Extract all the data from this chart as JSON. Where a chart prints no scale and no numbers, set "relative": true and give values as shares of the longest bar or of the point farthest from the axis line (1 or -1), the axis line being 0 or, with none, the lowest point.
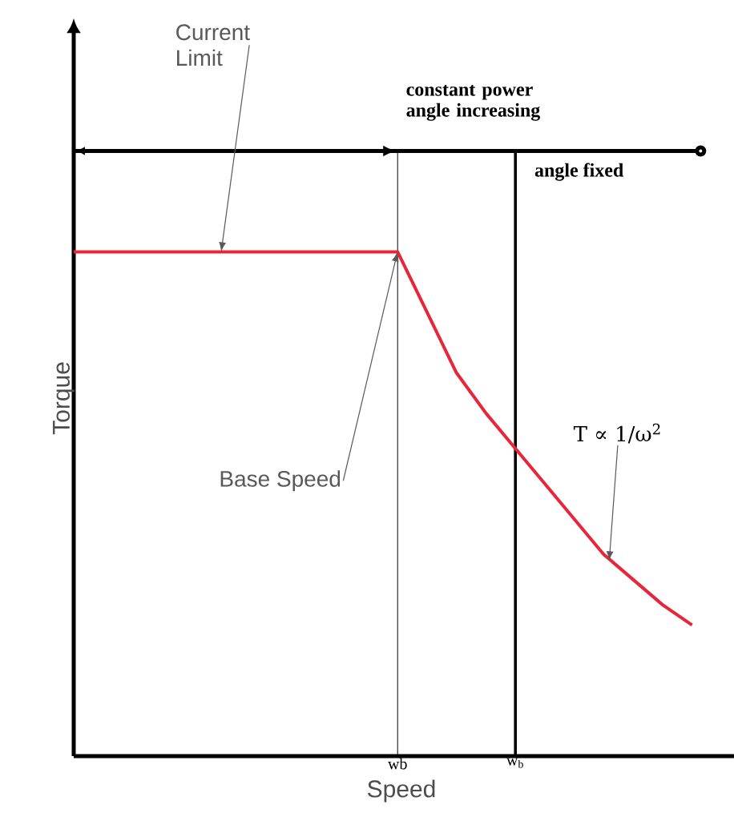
{
  "chart_data": {
    "type": "line",
    "relative": true,
    "xlabel": "Speed",
    "ylabel": "Torque",
    "tick_labels": "x",
    "categories": [
      null,
      null,
      null,
      null,
      null,
      null,
      null,
      null,
      null,
      null,
      null,
      "wb",
      null,
      null,
      null,
      "w$_{b}$",
      null,
      null,
      null,
      null,
      null,
      null
    ],
    "series": [
      {
        "color": "#e8263a",
        "values": [
          1,
          1,
          1,
          1,
          1,
          1,
          1,
          1,
          1,
          1,
          1,
          1,
          0.88,
          0.76,
          0.68,
          0.61,
          0.54,
          0.47,
          0.4,
          0.35,
          0.3,
          0.26
        ]
      }
    ],
    "ref_lines": [
      {
        "axis": "x",
        "value": "wb",
        "color": "#000000"
      },
      {
        "axis": "x",
        "value": "w$_{b}$",
        "color": "#000000"
      }
    ],
    "annotations": [
      "Current Limit",
      "Base Speed",
      "T ∝ 1/ω$^{2}$",
      "constant power angle increasing",
      "angle fixed"
    ],
    "marker": "none",
    "line_style": "solid"
  }
}
